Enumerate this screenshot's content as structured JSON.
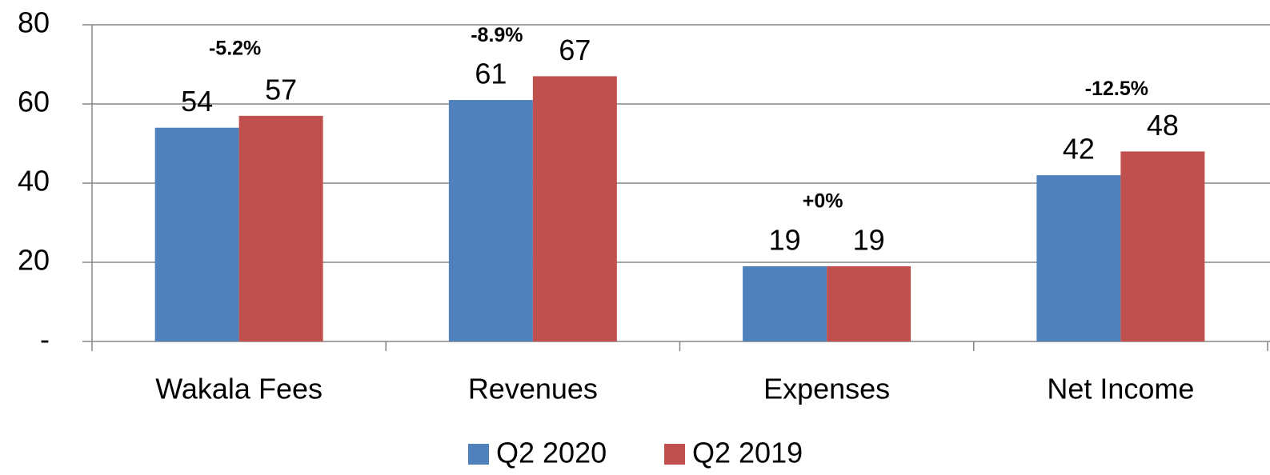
{
  "chart_data": {
    "type": "bar",
    "categories": [
      "Wakala Fees",
      "Revenues",
      "Expenses",
      "Net Income"
    ],
    "series": [
      {
        "name": "Q2 2020",
        "color": "#4f81bd",
        "values": [
          54,
          61,
          19,
          42
        ]
      },
      {
        "name": "Q2 2019",
        "color": "#c0504d",
        "values": [
          57,
          67,
          19,
          48
        ]
      }
    ],
    "annotations": [
      {
        "text": "-5.2%",
        "color": "#ff0000"
      },
      {
        "text": "-8.9%",
        "color": "#ff0000"
      },
      {
        "text": "+0%",
        "color": "#00b050"
      },
      {
        "text": "-12.5%",
        "color": "#ff0000"
      }
    ],
    "ylim": [
      0,
      80
    ],
    "yticks": [
      {
        "value": 0,
        "label": "-"
      },
      20,
      40,
      60,
      80
    ],
    "grid": true,
    "legend": "bottom"
  }
}
